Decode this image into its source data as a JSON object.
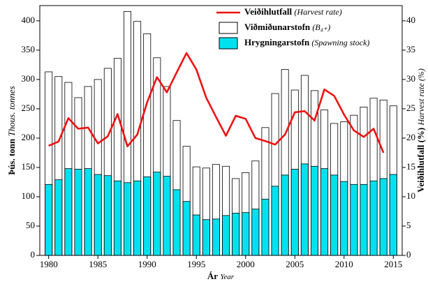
{
  "chart_data": {
    "type": "bar",
    "xlabel": "Ár",
    "xlabel_en": "Year",
    "ylabel": "Þús. tonn",
    "ylabel_en": "Thous. tonnes",
    "y2label": "Veiðihlutfall (%)",
    "y2label_en": "Harvest rate (%)",
    "x": [
      1980,
      1981,
      1982,
      1983,
      1984,
      1985,
      1986,
      1987,
      1988,
      1989,
      1990,
      1991,
      1992,
      1993,
      1994,
      1995,
      1996,
      1997,
      1998,
      1999,
      2000,
      2001,
      2002,
      2003,
      2004,
      2005,
      2006,
      2007,
      2008,
      2009,
      2010,
      2011,
      2012,
      2013,
      2014,
      2015
    ],
    "xlim": [
      1979.1,
      2015.9
    ],
    "xticks": [
      1980,
      1985,
      1990,
      1995,
      2000,
      2005,
      2010,
      2015
    ],
    "ylim": [
      0,
      426
    ],
    "yticks": [
      0,
      50,
      100,
      150,
      200,
      250,
      300,
      350,
      400
    ],
    "y2lim": [
      0,
      42.6
    ],
    "y2ticks": [
      0,
      5,
      10,
      15,
      20,
      25,
      30,
      35,
      40
    ],
    "legend": "upper right",
    "series": [
      {
        "name": "Veiðihlutfall",
        "name_en": "(Harvest rate)",
        "type": "line",
        "axis": "y2",
        "color": "#ee1111",
        "values": [
          18.7,
          19.4,
          23.4,
          21.6,
          21.8,
          19.1,
          20.3,
          24.1,
          18.6,
          20.6,
          26.1,
          30.4,
          27.8,
          31.2,
          34.5,
          31.7,
          26.9,
          23.6,
          20.4,
          23.8,
          23.3,
          20.0,
          19.5,
          18.9,
          20.6,
          24.4,
          24.6,
          23.0,
          28.3,
          27.2,
          24.0,
          21.3,
          20.2,
          21.6,
          17.5,
          null
        ]
      },
      {
        "name": "Viðmiðunarstofn",
        "name_en": "(B₄₊)",
        "type": "bar",
        "color": "#ffffff",
        "values": [
          313,
          305,
          295,
          269,
          288,
          300,
          319,
          336,
          416,
          399,
          378,
          337,
          288,
          230,
          186,
          151,
          149,
          155,
          152,
          131,
          141,
          161,
          218,
          276,
          317,
          282,
          307,
          281,
          248,
          225,
          228,
          239,
          253,
          268,
          265,
          255
        ]
      },
      {
        "name": "Hrygningarstofn",
        "name_en": "(Spawning stock)",
        "type": "bar",
        "color": "#00e1ef",
        "values": [
          121,
          129,
          148,
          147,
          148,
          138,
          136,
          127,
          124,
          127,
          134,
          142,
          135,
          112,
          92,
          69,
          61,
          62,
          68,
          72,
          73,
          79,
          96,
          118,
          137,
          147,
          156,
          152,
          148,
          137,
          126,
          121,
          121,
          127,
          131,
          138
        ]
      }
    ]
  }
}
